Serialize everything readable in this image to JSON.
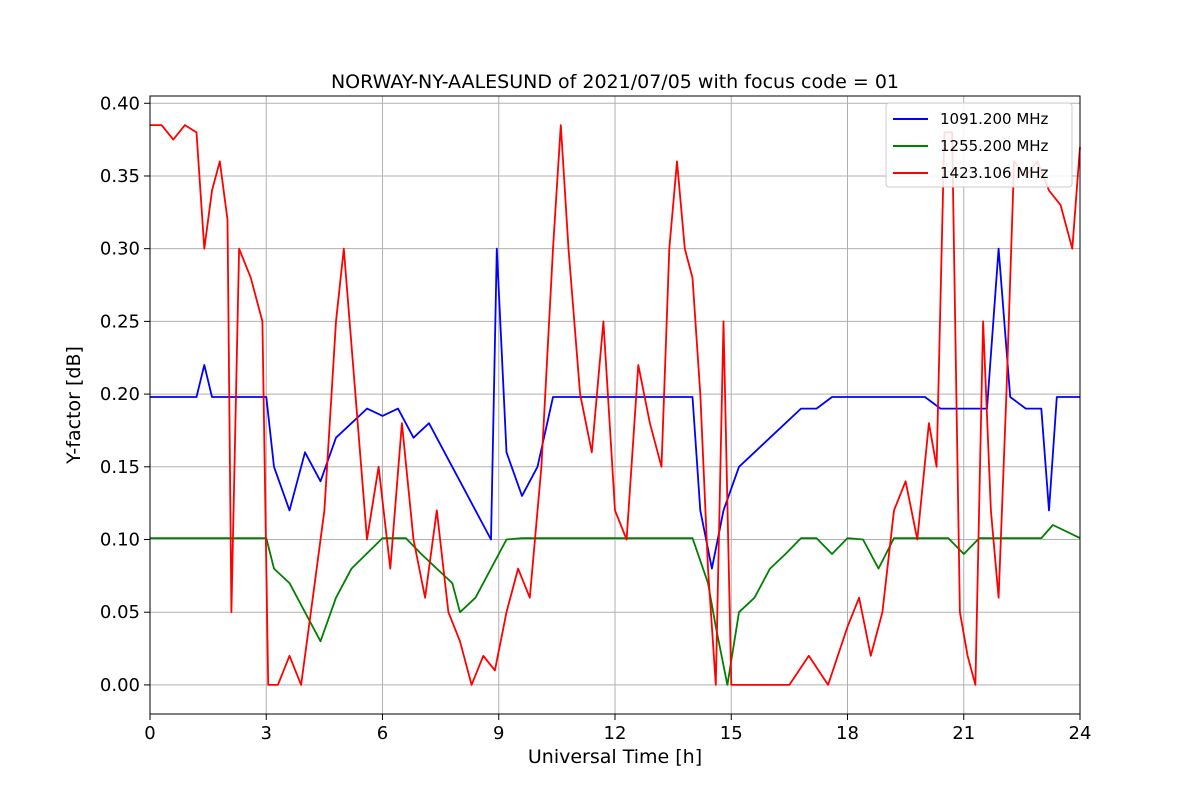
{
  "chart_data": {
    "type": "line",
    "title": "NORWAY-NY-AALESUND of 2021/07/05 with focus code = 01",
    "xlabel": "Universal Time [h]",
    "ylabel": "Y-factor [dB]",
    "xlim": [
      0,
      24
    ],
    "ylim": [
      -0.02,
      0.405
    ],
    "xticks": [
      0,
      3,
      6,
      9,
      12,
      15,
      18,
      21,
      24
    ],
    "yticks": [
      0.0,
      0.05,
      0.1,
      0.15,
      0.2,
      0.25,
      0.3,
      0.35,
      0.4
    ],
    "ytick_labels": [
      "0.00",
      "0.05",
      "0.10",
      "0.15",
      "0.20",
      "0.25",
      "0.30",
      "0.35",
      "0.40"
    ],
    "grid": true,
    "legend_position": "top-right",
    "series": [
      {
        "name": "1091.200 MHz",
        "color": "#0000ff",
        "x": [
          0,
          0.4,
          0.8,
          1.2,
          1.4,
          1.6,
          1.8,
          2.2,
          2.6,
          3.0,
          3.2,
          3.6,
          4.0,
          4.4,
          4.8,
          5.2,
          5.6,
          6.0,
          6.4,
          6.8,
          7.2,
          7.6,
          8.0,
          8.4,
          8.8,
          8.95,
          9.2,
          9.6,
          10.0,
          10.4,
          10.8,
          11.2,
          11.6,
          12.0,
          12.4,
          12.8,
          13.2,
          13.6,
          14.0,
          14.2,
          14.5,
          14.8,
          15.2,
          15.6,
          16.0,
          16.4,
          16.8,
          17.2,
          17.6,
          18.0,
          18.4,
          18.8,
          19.2,
          19.6,
          20.0,
          20.4,
          20.8,
          21.2,
          21.6,
          21.9,
          22.2,
          22.6,
          23.0,
          23.2,
          23.4,
          24.0
        ],
        "y": [
          0.198,
          0.198,
          0.198,
          0.198,
          0.22,
          0.198,
          0.198,
          0.198,
          0.198,
          0.198,
          0.15,
          0.12,
          0.16,
          0.14,
          0.17,
          0.18,
          0.19,
          0.185,
          0.19,
          0.17,
          0.18,
          0.16,
          0.14,
          0.12,
          0.1,
          0.3,
          0.16,
          0.13,
          0.15,
          0.198,
          0.198,
          0.198,
          0.198,
          0.198,
          0.198,
          0.198,
          0.198,
          0.198,
          0.198,
          0.12,
          0.08,
          0.12,
          0.15,
          0.16,
          0.17,
          0.18,
          0.19,
          0.19,
          0.198,
          0.198,
          0.198,
          0.198,
          0.198,
          0.198,
          0.198,
          0.19,
          0.19,
          0.19,
          0.19,
          0.3,
          0.198,
          0.19,
          0.19,
          0.12,
          0.198,
          0.198
        ]
      },
      {
        "name": "1255.200 MHz",
        "color": "#008000",
        "x": [
          0,
          1.0,
          2.0,
          3.0,
          3.2,
          3.6,
          4.0,
          4.4,
          4.8,
          5.2,
          6.0,
          6.6,
          7.0,
          7.4,
          7.8,
          8.0,
          8.4,
          8.8,
          9.2,
          9.6,
          10.0,
          10.4,
          11.0,
          12.0,
          13.0,
          14.0,
          14.4,
          14.6,
          14.9,
          15.2,
          15.6,
          16.0,
          16.4,
          16.8,
          17.2,
          17.6,
          18.0,
          18.4,
          18.8,
          19.2,
          20.0,
          20.6,
          21.0,
          21.4,
          22.0,
          23.0,
          23.3,
          24.0
        ],
        "y": [
          0.101,
          0.101,
          0.101,
          0.101,
          0.08,
          0.07,
          0.05,
          0.03,
          0.06,
          0.08,
          0.101,
          0.101,
          0.09,
          0.08,
          0.07,
          0.05,
          0.06,
          0.08,
          0.1,
          0.101,
          0.101,
          0.101,
          0.101,
          0.101,
          0.101,
          0.101,
          0.07,
          0.04,
          0.0,
          0.05,
          0.06,
          0.08,
          0.09,
          0.101,
          0.101,
          0.09,
          0.101,
          0.1,
          0.08,
          0.101,
          0.101,
          0.101,
          0.09,
          0.101,
          0.101,
          0.101,
          0.11,
          0.101
        ]
      },
      {
        "name": "1423.106 MHz",
        "color": "#ff0000",
        "x": [
          0,
          0.3,
          0.6,
          0.9,
          1.2,
          1.4,
          1.6,
          1.8,
          2.0,
          2.1,
          2.3,
          2.6,
          2.9,
          3.05,
          3.3,
          3.6,
          3.9,
          4.2,
          4.5,
          4.8,
          5.0,
          5.3,
          5.6,
          5.9,
          6.2,
          6.5,
          6.8,
          7.1,
          7.4,
          7.7,
          8.0,
          8.3,
          8.6,
          8.9,
          9.2,
          9.5,
          9.8,
          10.1,
          10.4,
          10.6,
          10.8,
          11.1,
          11.4,
          11.7,
          12.0,
          12.3,
          12.6,
          12.9,
          13.2,
          13.4,
          13.6,
          13.8,
          14.0,
          14.2,
          14.4,
          14.6,
          14.8,
          15.0,
          15.5,
          16.0,
          16.5,
          17.0,
          17.5,
          18.0,
          18.3,
          18.6,
          18.9,
          19.2,
          19.5,
          19.8,
          20.1,
          20.3,
          20.5,
          20.7,
          20.9,
          21.1,
          21.3,
          21.5,
          21.7,
          21.9,
          22.1,
          22.3,
          22.6,
          22.9,
          23.2,
          23.5,
          23.8,
          24.0
        ],
        "y": [
          0.385,
          0.385,
          0.375,
          0.385,
          0.38,
          0.3,
          0.34,
          0.36,
          0.32,
          0.05,
          0.3,
          0.28,
          0.25,
          0.0,
          0.0,
          0.02,
          0.0,
          0.06,
          0.12,
          0.25,
          0.3,
          0.2,
          0.1,
          0.15,
          0.08,
          0.18,
          0.1,
          0.06,
          0.12,
          0.05,
          0.03,
          0.0,
          0.02,
          0.01,
          0.05,
          0.08,
          0.06,
          0.15,
          0.3,
          0.385,
          0.3,
          0.2,
          0.16,
          0.25,
          0.12,
          0.1,
          0.22,
          0.18,
          0.15,
          0.3,
          0.36,
          0.3,
          0.28,
          0.2,
          0.08,
          0.0,
          0.25,
          0.0,
          0.0,
          0.0,
          0.0,
          0.02,
          0.0,
          0.04,
          0.06,
          0.02,
          0.05,
          0.12,
          0.14,
          0.1,
          0.18,
          0.15,
          0.38,
          0.38,
          0.05,
          0.02,
          0.0,
          0.25,
          0.12,
          0.06,
          0.2,
          0.36,
          0.35,
          0.36,
          0.34,
          0.33,
          0.3,
          0.37
        ]
      }
    ]
  }
}
